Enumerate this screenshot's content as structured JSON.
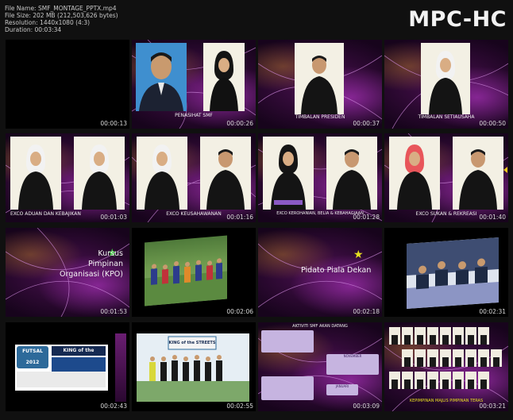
{
  "file_info": {
    "name": "File Name: SMF_MONTAGE_PPTX.mp4",
    "size": "File Size: 202 MB (212,503,626 bytes)",
    "resolution": "Resolution: 1440x1080 (4:3)",
    "duration": "Duration: 00:03:34"
  },
  "app_logo": "MPC-HC",
  "thumbnails": [
    {
      "time": "00:00:13"
    },
    {
      "time": "00:00:26",
      "caption": "PENASIHAT SMF"
    },
    {
      "time": "00:00:37",
      "caption": "TIMBALAN PRESIDEN"
    },
    {
      "time": "00:00:50",
      "caption": "TIMBALAN SETIAUSAHA"
    },
    {
      "time": "00:01:03",
      "caption": "EXCO ADUAN DAN KEBAJIKAN"
    },
    {
      "time": "00:01:16",
      "caption": "EXCO KEUSAHAWANAN"
    },
    {
      "time": "00:01:28",
      "caption": "EXCO KEROHANIAN, BELIA & KEBAHAGIAAN"
    },
    {
      "time": "00:01:40",
      "caption": "EXCO SUKAN & REKREASI"
    },
    {
      "time": "00:01:53",
      "text_lines": [
        "Kursus",
        "Pimpinan",
        "Organisasi (KPO)"
      ]
    },
    {
      "time": "00:02:06"
    },
    {
      "time": "00:02:18",
      "text_lines": [
        "Pidato Piala Dekan"
      ]
    },
    {
      "time": "00:02:31"
    },
    {
      "time": "00:02:43",
      "futsal_label": "FUTSAL 2012",
      "banner_title": "KING of the STREETS"
    },
    {
      "time": "00:02:55",
      "banner_title": "KING of the STREETS"
    },
    {
      "time": "00:03:09",
      "list_title": "AKTIVITI SMF AKAN DATANG",
      "labels": [
        "NOVEMBER",
        "JANUARI"
      ]
    },
    {
      "time": "00:03:21",
      "caption": "KEPIMPINAN MAJLIS PIMPINAN TERAS"
    }
  ],
  "colors": {
    "background": "#101010",
    "accent_star": "#3ec43e",
    "accent_star_yellow": "#e6e020"
  }
}
